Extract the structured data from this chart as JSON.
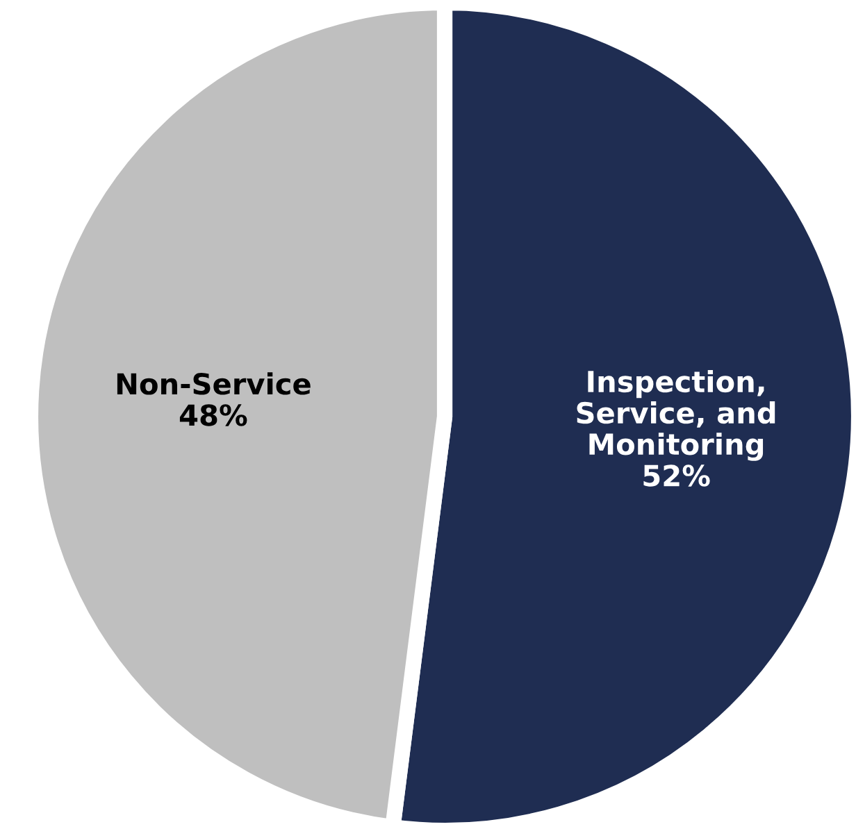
{
  "chart_data": {
    "type": "pie",
    "categories": [
      "Inspection,\nService, and\nMonitoring",
      "Non-Service"
    ],
    "values": [
      52,
      48
    ],
    "value_labels": [
      "52%",
      "48%"
    ],
    "colors": [
      "#1f2d52",
      "#bfbfbf"
    ]
  }
}
